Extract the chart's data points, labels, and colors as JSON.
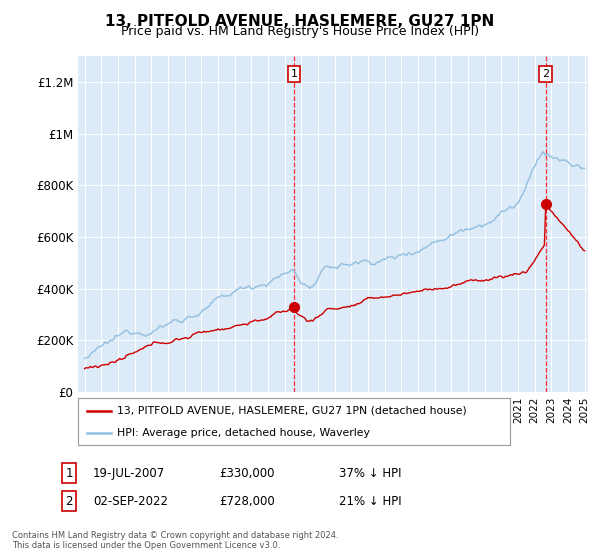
{
  "title": "13, PITFOLD AVENUE, HASLEMERE, GU27 1PN",
  "subtitle": "Price paid vs. HM Land Registry's House Price Index (HPI)",
  "bg_color": "#ddeaf7",
  "hpi_color": "#92bfe0",
  "price_color": "#cc0000",
  "ylim": [
    0,
    1300000
  ],
  "yticks": [
    0,
    200000,
    400000,
    600000,
    800000,
    1000000,
    1200000
  ],
  "ytick_labels": [
    "£0",
    "£200K",
    "£400K",
    "£600K",
    "£800K",
    "£1M",
    "£1.2M"
  ],
  "sale1_date_x": 2007.55,
  "sale1_price": 330000,
  "sale2_date_x": 2022.67,
  "sale2_price": 728000,
  "legend_line1": "13, PITFOLD AVENUE, HASLEMERE, GU27 1PN (detached house)",
  "legend_line2": "HPI: Average price, detached house, Waverley",
  "footnote": "Contains HM Land Registry data © Crown copyright and database right 2024.\nThis data is licensed under the Open Government Licence v3.0.",
  "xmin": 1994.6,
  "xmax": 2025.2
}
